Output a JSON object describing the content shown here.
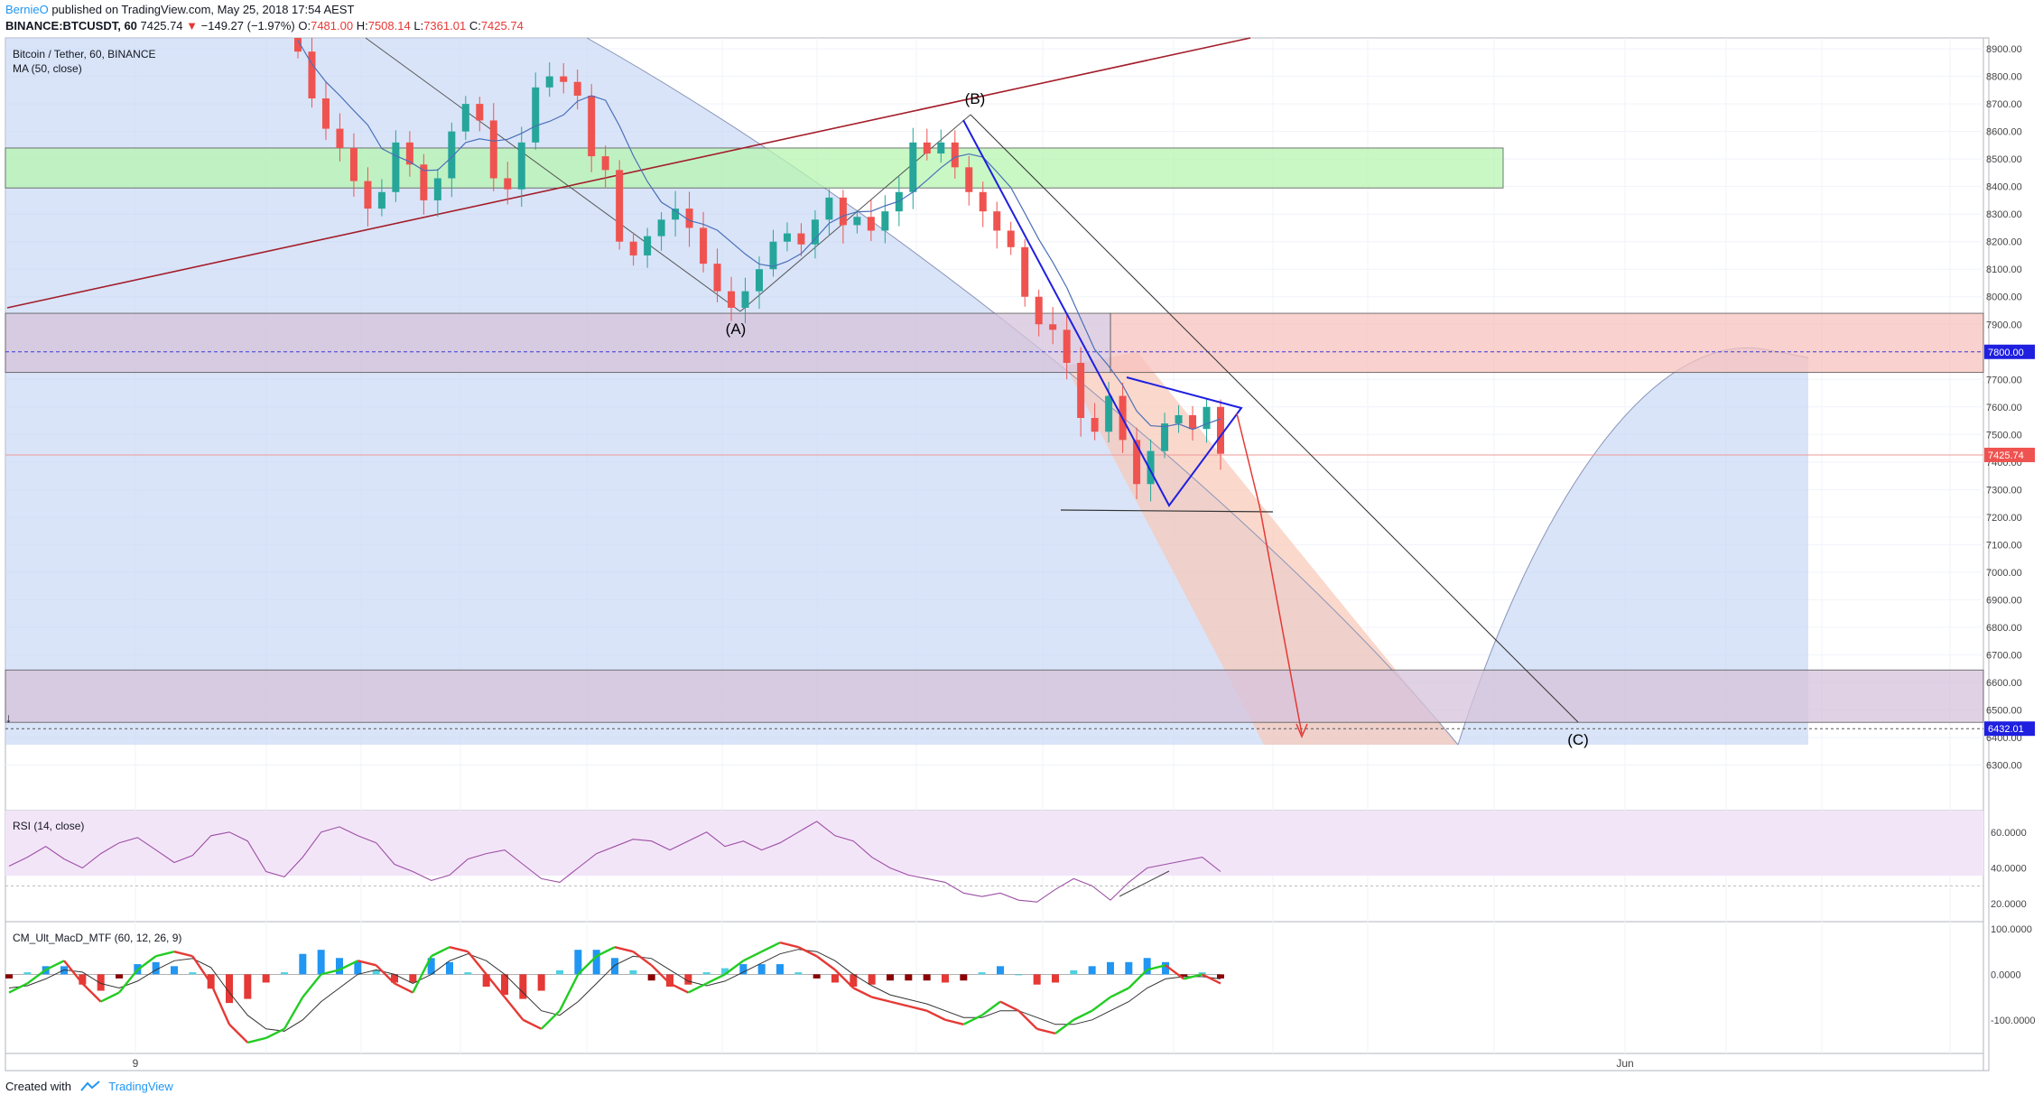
{
  "header": {
    "author": "BernieO",
    "published": "published on TradingView.com, May 25, 2018 17:54 AEST",
    "symbol": "BINANCE:BTCUSDT, 60",
    "last": "7425.74",
    "change_arrow": "▼",
    "change": "−149.27 (−1.97%)",
    "o_label": "O:",
    "o": "7481.00",
    "h_label": "H:",
    "h": "7508.14",
    "l_label": "L:",
    "l": "7361.01",
    "c_label": "C:",
    "c": "7425.74"
  },
  "footer": {
    "created_with": "Created with",
    "brand": "TradingView"
  },
  "colors": {
    "up": "#26a69a",
    "down": "#ef5350",
    "ma": "#4a6fb8",
    "rsi": "#9c4fa5",
    "wedge": "#1f1fe0",
    "trend_red": "#a31d2a",
    "arrow": "#e53935",
    "green_zone": "#b7f5b0",
    "red_zone": "#f7c1bd",
    "purple_zone": "#d6c3db",
    "blue_arc": "#b9cdf2",
    "salmon": "#f8c8b7"
  },
  "chart_data": {
    "type": "candlestick",
    "title": "Bitcoin / Tether, 60, BINANCE",
    "indicator": "MA (50, close)",
    "ylim": [
      6200,
      8920
    ],
    "y_ticks": [
      8900,
      8800,
      8700,
      8600,
      8500,
      8400,
      8300,
      8200,
      8100,
      8000,
      7900,
      7800,
      7700,
      7600,
      7500,
      7400,
      7300,
      7200,
      7100,
      7000,
      6900,
      6800,
      6700,
      6600,
      6500,
      6400,
      6300
    ],
    "x_labels": [
      "9",
      "Jun"
    ],
    "price_labels": [
      {
        "value": 7800,
        "text": "7800.00",
        "color": "#1f1fe0"
      },
      {
        "value": 7425.74,
        "text": "7425.74",
        "color": "#ef5350"
      },
      {
        "value": 6432.01,
        "text": "6432.01",
        "color": "#1f1fe0"
      }
    ],
    "zones": [
      {
        "name": "green-zone",
        "y_top": 8540,
        "y_bottom": 8395,
        "color": "#b7f5b0"
      },
      {
        "name": "red-zone",
        "y_top": 7940,
        "y_bottom": 7725,
        "color": "#f7c1bd"
      },
      {
        "name": "purple-zone-upper",
        "y_top": 7940,
        "y_bottom": 7725,
        "color": "#d6c3db"
      },
      {
        "name": "purple-zone-lower",
        "y_top": 6645,
        "y_bottom": 6455,
        "color": "#d6c3db"
      }
    ],
    "wave_labels": [
      "(A)",
      "(B)",
      "(C)"
    ],
    "closes": [
      8890,
      8720,
      8610,
      8540,
      8420,
      8320,
      8380,
      8560,
      8480,
      8350,
      8430,
      8600,
      8700,
      8640,
      8430,
      8390,
      8560,
      8760,
      8800,
      8780,
      8730,
      8510,
      8460,
      8200,
      8150,
      8220,
      8280,
      8320,
      8250,
      8120,
      8020,
      7960,
      8020,
      8100,
      8200,
      8230,
      8190,
      8280,
      8360,
      8260,
      8290,
      8240,
      8310,
      8380,
      8560,
      8520,
      8560,
      8470,
      8380,
      8310,
      8240,
      8180,
      8000,
      7900,
      7880,
      7760,
      7560,
      7510,
      7640,
      7480,
      7320,
      7440,
      7540,
      7570,
      7520,
      7600,
      7430
    ],
    "rsi": {
      "label": "RSI (14, close)",
      "ylim": [
        10,
        72
      ],
      "ticks": [
        60,
        40,
        20
      ],
      "tick_text": [
        "60.0000",
        "40.0000",
        "20.0000"
      ],
      "values": [
        41,
        46,
        52,
        45,
        40,
        48,
        54,
        57,
        50,
        43,
        47,
        58,
        60,
        55,
        38,
        35,
        46,
        60,
        63,
        58,
        54,
        42,
        38,
        33,
        36,
        45,
        48,
        50,
        42,
        34,
        32,
        40,
        48,
        52,
        56,
        55,
        50,
        55,
        60,
        52,
        55,
        50,
        54,
        60,
        66,
        58,
        55,
        46,
        40,
        36,
        34,
        32,
        26,
        24,
        26,
        22,
        21,
        28,
        34,
        30,
        22,
        32,
        40,
        42,
        44,
        46,
        38
      ]
    },
    "macd": {
      "label": "CM_Ult_MacD_MTF (60, 12, 26, 9)",
      "ylim": [
        -170,
        110
      ],
      "ticks": [
        100,
        0,
        -100
      ],
      "tick_text": [
        "100.0000",
        "0.0000",
        "-100.0000"
      ],
      "macd": [
        -40,
        -20,
        10,
        30,
        -20,
        -60,
        -40,
        10,
        40,
        50,
        40,
        -20,
        -110,
        -150,
        -140,
        -120,
        -50,
        0,
        10,
        30,
        20,
        -20,
        -40,
        40,
        60,
        50,
        0,
        -50,
        -100,
        -120,
        -80,
        0,
        40,
        60,
        50,
        20,
        -20,
        -40,
        -20,
        0,
        30,
        50,
        70,
        60,
        40,
        10,
        -30,
        -50,
        -60,
        -70,
        -80,
        -100,
        -110,
        -90,
        -60,
        -80,
        -120,
        -130,
        -100,
        -80,
        -50,
        -30,
        10,
        20,
        -10,
        0,
        -20
      ],
      "signal": [
        -30,
        -25,
        -10,
        10,
        5,
        -20,
        -30,
        -15,
        10,
        30,
        35,
        15,
        -40,
        -90,
        -120,
        -125,
        -100,
        -60,
        -30,
        0,
        10,
        0,
        -20,
        0,
        30,
        45,
        30,
        0,
        -40,
        -80,
        -90,
        -60,
        -20,
        20,
        40,
        35,
        10,
        -15,
        -25,
        -15,
        5,
        25,
        45,
        55,
        50,
        30,
        0,
        -25,
        -45,
        -55,
        -65,
        -80,
        -95,
        -95,
        -80,
        -80,
        -95,
        -110,
        -110,
        -100,
        -80,
        -60,
        -30,
        -10,
        -5,
        -5,
        -10
      ]
    }
  }
}
